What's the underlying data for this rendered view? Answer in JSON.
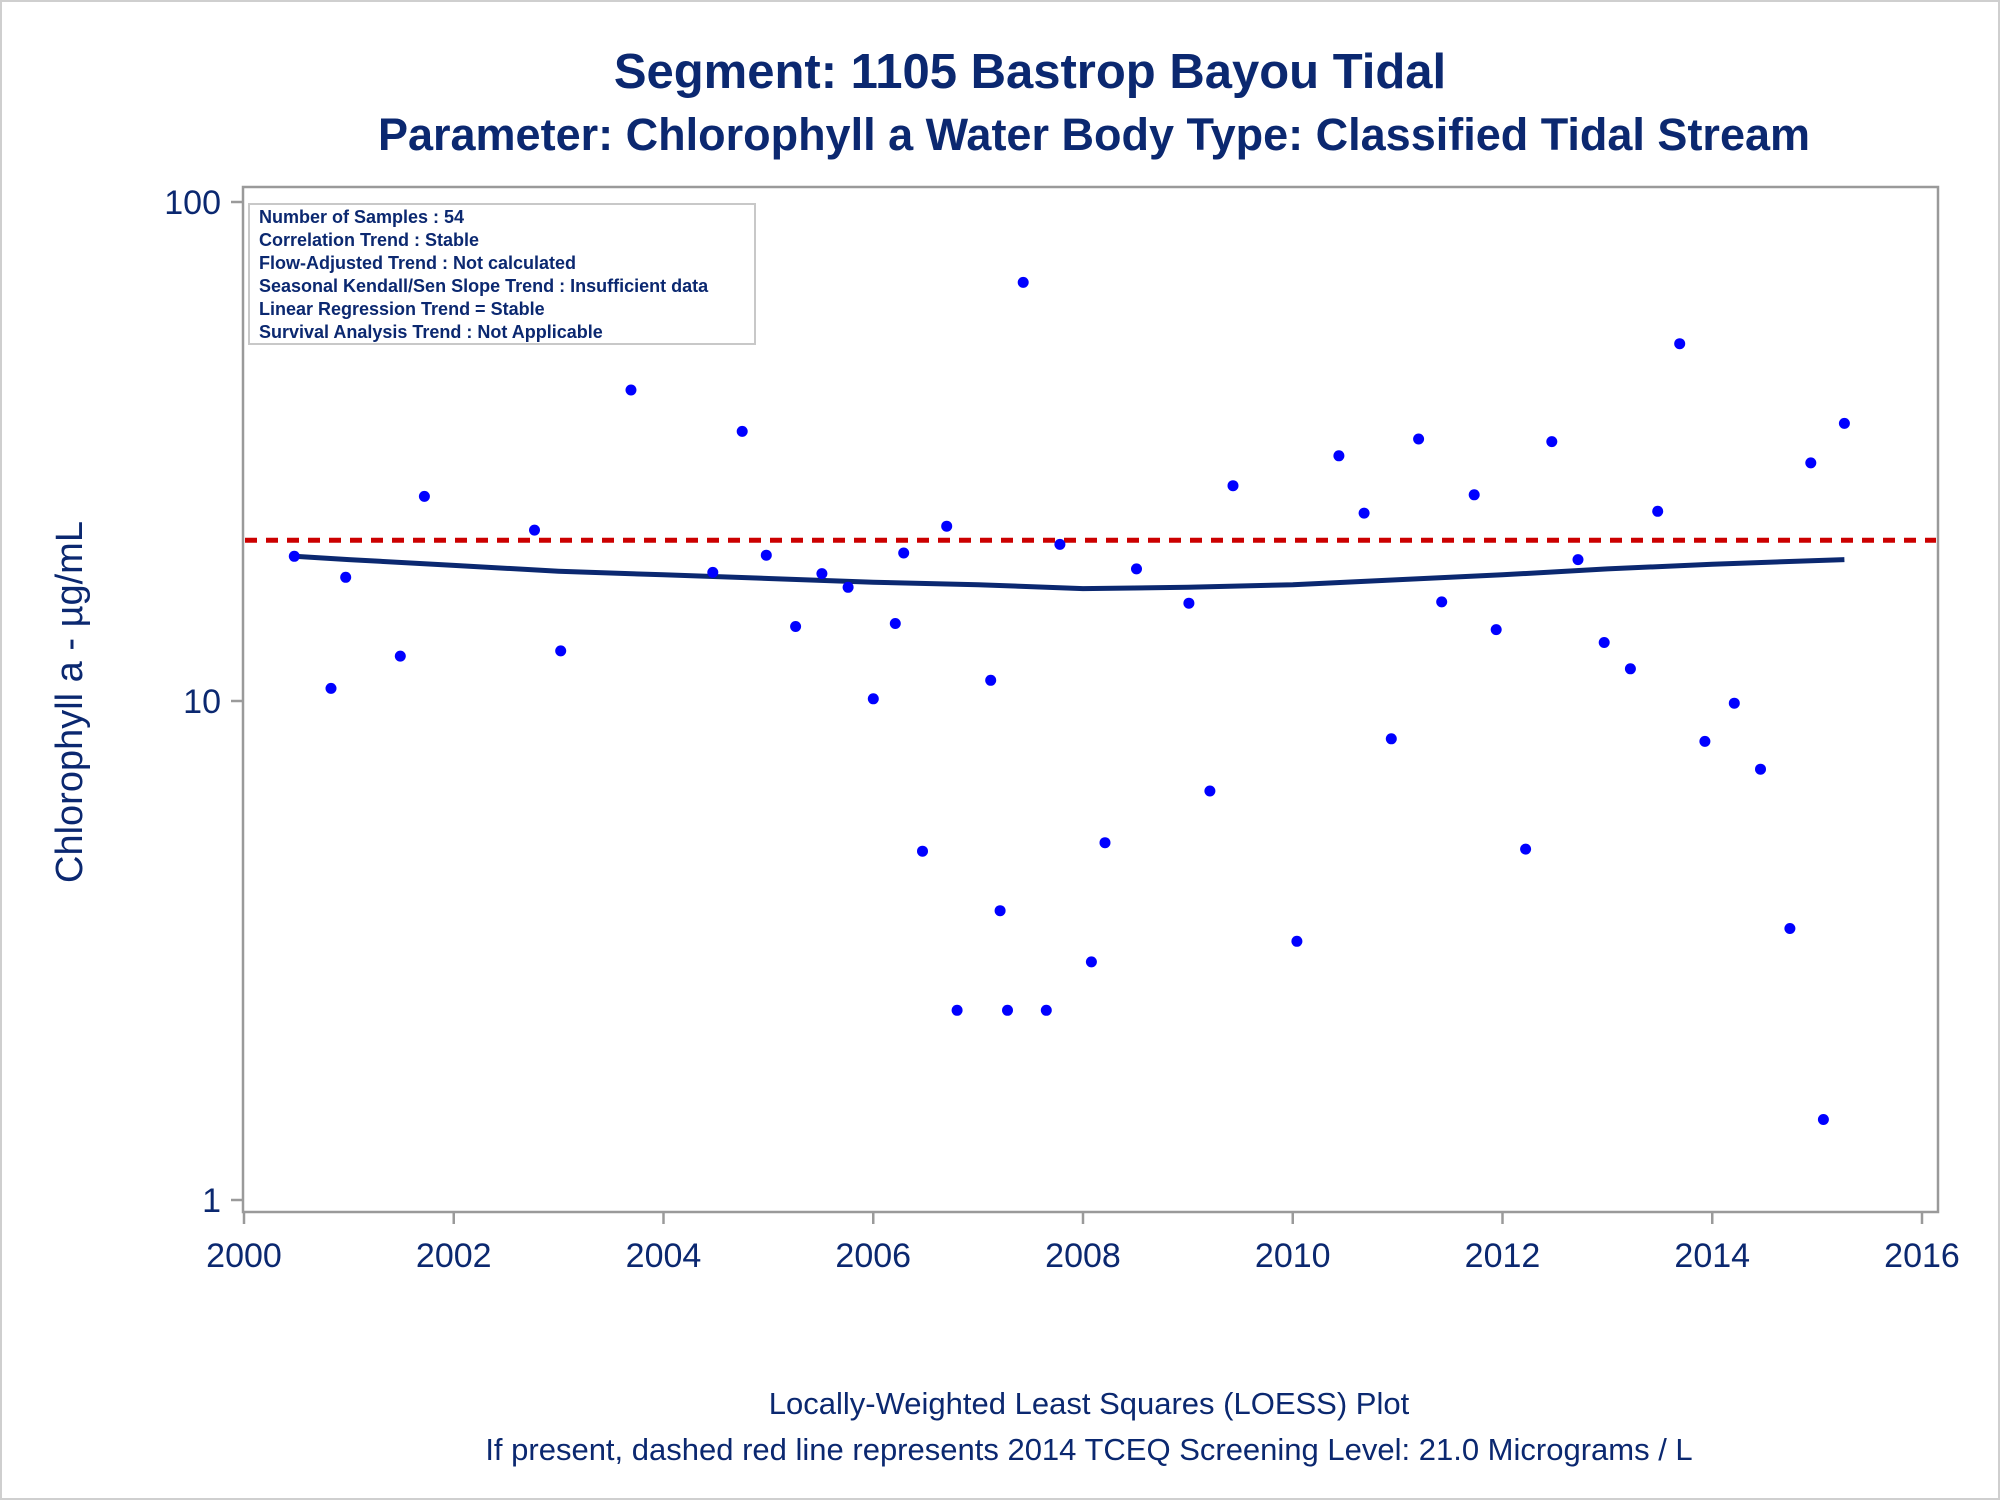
{
  "chart_data": {
    "type": "scatter",
    "title": "Segment: 1105  Bastrop Bayou Tidal",
    "subtitle": "Parameter: Chlorophyll a   Water Body Type: Classified Tidal Stream",
    "xlabel": "",
    "ylabel": "Chlorophyll a -  µg/mL",
    "xlim": [
      2000,
      2016
    ],
    "ylim": [
      1,
      100
    ],
    "yscale": "log",
    "x_ticks": [
      "2000",
      "2002",
      "2004",
      "2006",
      "2008",
      "2010",
      "2012",
      "2014",
      "2016"
    ],
    "y_ticks": [
      "1",
      "10",
      "100"
    ],
    "grid": false,
    "legend": "none",
    "footnotes": [
      "Locally-Weighted Least Squares (LOESS) Plot",
      "If present, dashed red line represents 2014 TCEQ Screening Level: 21.0 Micrograms / L"
    ],
    "inset_stats": [
      "Number of Samples : 54",
      "Correlation Trend : Stable",
      "Flow-Adjusted Trend : Not calculated",
      "Seasonal Kendall/Sen Slope Trend : Insufficient data",
      "Linear Regression Trend = Stable",
      "Survival Analysis Trend : Not Applicable"
    ],
    "screening_level": 21.0,
    "colors": {
      "points": "#0000ff",
      "loess": "#0b2870",
      "screening": "#cc0000",
      "text": "#0b2870"
    },
    "points": [
      {
        "x": 2000.48,
        "y": 19.5
      },
      {
        "x": 2000.83,
        "y": 10.6
      },
      {
        "x": 2000.97,
        "y": 17.7
      },
      {
        "x": 2001.49,
        "y": 12.3
      },
      {
        "x": 2001.72,
        "y": 25.7
      },
      {
        "x": 2002.77,
        "y": 22.0
      },
      {
        "x": 2003.02,
        "y": 12.6
      },
      {
        "x": 2003.69,
        "y": 42.0
      },
      {
        "x": 2004.47,
        "y": 18.1
      },
      {
        "x": 2004.75,
        "y": 34.7
      },
      {
        "x": 2004.98,
        "y": 19.6
      },
      {
        "x": 2005.26,
        "y": 14.1
      },
      {
        "x": 2005.51,
        "y": 18.0
      },
      {
        "x": 2005.76,
        "y": 16.9
      },
      {
        "x": 2006.0,
        "y": 10.1
      },
      {
        "x": 2006.21,
        "y": 14.3
      },
      {
        "x": 2006.29,
        "y": 19.8
      },
      {
        "x": 2006.47,
        "y": 5.0
      },
      {
        "x": 2006.7,
        "y": 22.4
      },
      {
        "x": 2006.8,
        "y": 2.4
      },
      {
        "x": 2007.12,
        "y": 11.0
      },
      {
        "x": 2007.21,
        "y": 3.8
      },
      {
        "x": 2007.28,
        "y": 2.4
      },
      {
        "x": 2007.43,
        "y": 69.0
      },
      {
        "x": 2007.65,
        "y": 2.4
      },
      {
        "x": 2007.78,
        "y": 20.6
      },
      {
        "x": 2008.08,
        "y": 3.0
      },
      {
        "x": 2008.21,
        "y": 5.2
      },
      {
        "x": 2008.51,
        "y": 18.4
      },
      {
        "x": 2009.01,
        "y": 15.7
      },
      {
        "x": 2009.21,
        "y": 6.6
      },
      {
        "x": 2009.43,
        "y": 27.0
      },
      {
        "x": 2010.04,
        "y": 3.3
      },
      {
        "x": 2010.44,
        "y": 31.0
      },
      {
        "x": 2010.68,
        "y": 23.8
      },
      {
        "x": 2010.94,
        "y": 8.4
      },
      {
        "x": 2011.2,
        "y": 33.5
      },
      {
        "x": 2011.42,
        "y": 15.8
      },
      {
        "x": 2011.73,
        "y": 25.9
      },
      {
        "x": 2011.94,
        "y": 13.9
      },
      {
        "x": 2012.22,
        "y": 5.05
      },
      {
        "x": 2012.47,
        "y": 33.1
      },
      {
        "x": 2012.72,
        "y": 19.2
      },
      {
        "x": 2012.97,
        "y": 13.1
      },
      {
        "x": 2013.22,
        "y": 11.6
      },
      {
        "x": 2013.48,
        "y": 24.0
      },
      {
        "x": 2013.69,
        "y": 52.0
      },
      {
        "x": 2013.93,
        "y": 8.3
      },
      {
        "x": 2014.21,
        "y": 9.9
      },
      {
        "x": 2014.46,
        "y": 7.3
      },
      {
        "x": 2014.74,
        "y": 3.5
      },
      {
        "x": 2014.94,
        "y": 30.0
      },
      {
        "x": 2015.06,
        "y": 1.45
      },
      {
        "x": 2015.26,
        "y": 36.0
      }
    ],
    "loess": [
      {
        "x": 2000.48,
        "y": 19.5
      },
      {
        "x": 2001.0,
        "y": 19.2
      },
      {
        "x": 2002.0,
        "y": 18.7
      },
      {
        "x": 2003.0,
        "y": 18.2
      },
      {
        "x": 2004.0,
        "y": 17.9
      },
      {
        "x": 2005.0,
        "y": 17.6
      },
      {
        "x": 2006.0,
        "y": 17.3
      },
      {
        "x": 2007.0,
        "y": 17.1
      },
      {
        "x": 2008.0,
        "y": 16.8
      },
      {
        "x": 2009.0,
        "y": 16.9
      },
      {
        "x": 2010.0,
        "y": 17.1
      },
      {
        "x": 2011.0,
        "y": 17.5
      },
      {
        "x": 2012.0,
        "y": 17.9
      },
      {
        "x": 2013.0,
        "y": 18.4
      },
      {
        "x": 2014.0,
        "y": 18.8
      },
      {
        "x": 2015.26,
        "y": 19.2
      }
    ]
  }
}
